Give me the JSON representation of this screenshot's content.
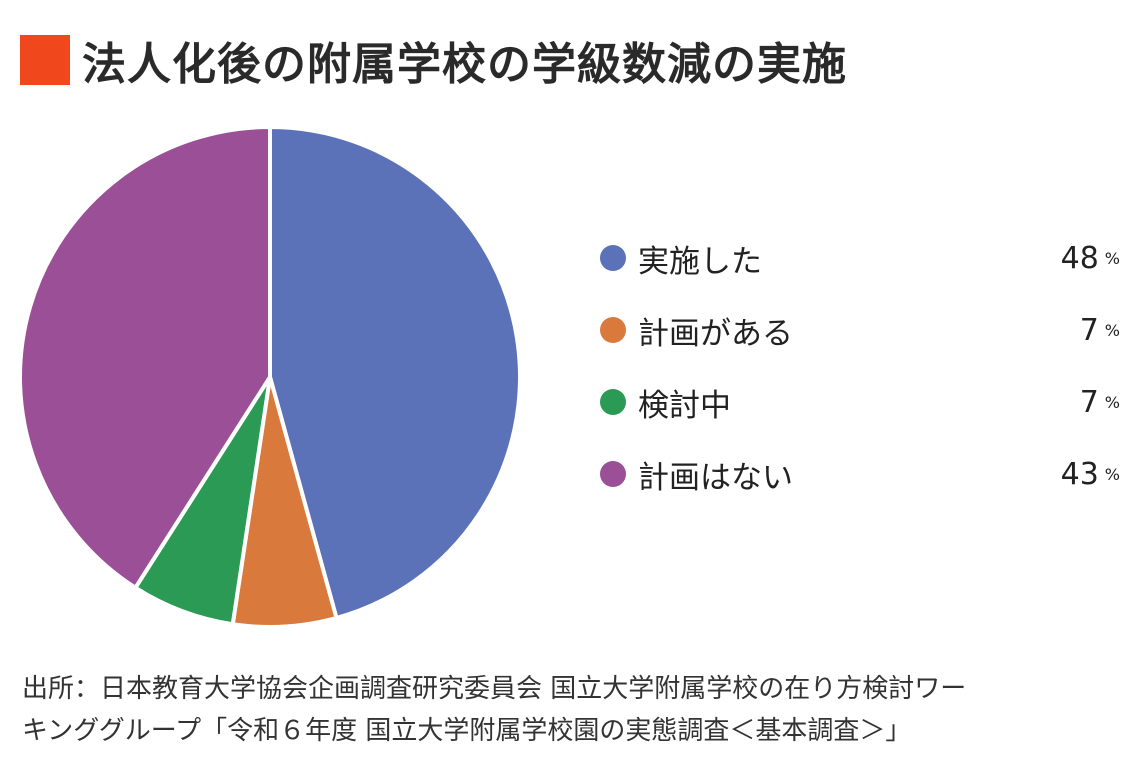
{
  "colors": {
    "title_marker": "#f0471c",
    "slice_border": "#ffffff"
  },
  "title": "法人化後の附属学校の学級数減の実施",
  "chart_data": {
    "type": "pie",
    "title": "法人化後の附属学校の学級数減の実施",
    "unit": "%",
    "start_angle_deg": 0,
    "direction": "clockwise",
    "legend_position": "right",
    "slices": [
      {
        "label": "実施した",
        "value": 48,
        "value_text": "48",
        "color": "#5b72b8"
      },
      {
        "label": "計画がある",
        "value": 7,
        "value_text": "7",
        "color": "#d97a3c"
      },
      {
        "label": "検討中",
        "value": 7,
        "value_text": "7",
        "color": "#2a9a55"
      },
      {
        "label": "計画はない",
        "value": 43,
        "value_text": "43",
        "color": "#9b4f96"
      }
    ]
  },
  "source": {
    "line1": "出所：日本教育大学協会企画調査研究委員会 国立大学附属学校の在り方検討ワー",
    "line2": "キンググループ「令和６年度 国立大学附属学校園の実態調査＜基本調査＞」"
  }
}
